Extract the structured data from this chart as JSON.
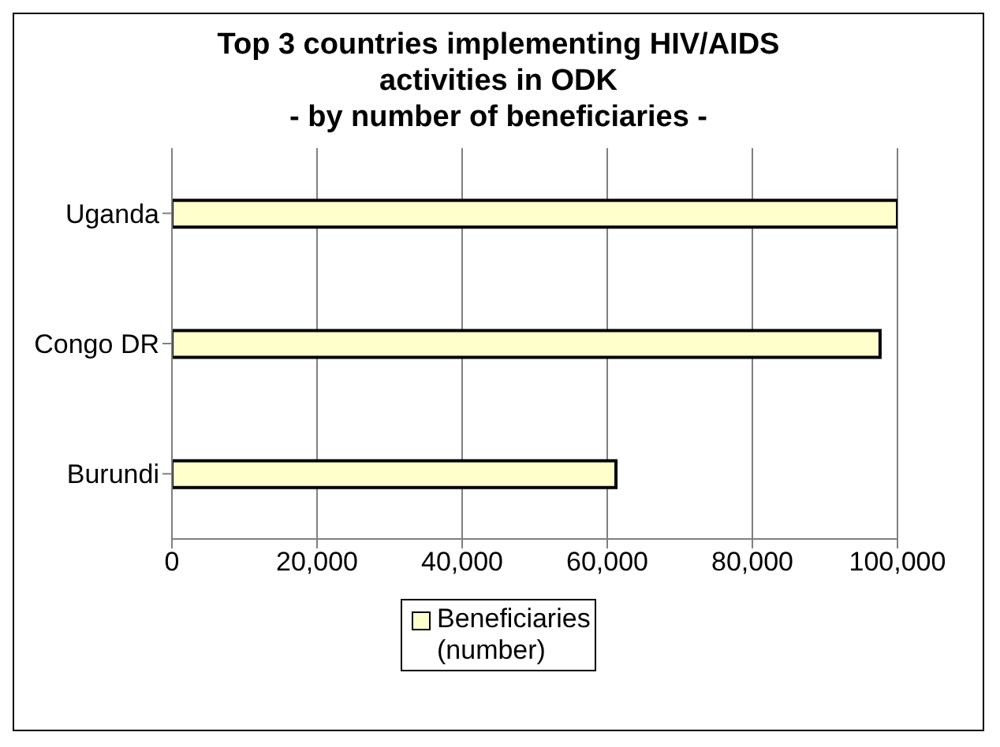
{
  "chart_data": {
    "type": "bar",
    "orientation": "horizontal",
    "title": "Top 3 countries implementing HIV/AIDS activities in ODK\n- by number of beneficiaries -",
    "categories": [
      "Uganda",
      "Congo DR",
      "Burundi"
    ],
    "series": [
      {
        "name": "Beneficiaries (number)",
        "color": "#ffffcc",
        "values": [
          100000,
          97600,
          61200
        ]
      }
    ],
    "xlim": [
      0,
      100000
    ],
    "xticks": [
      0,
      {
        "value": 20000,
        "label": "20,000"
      },
      {
        "value": 40000,
        "label": "40,000"
      },
      {
        "value": 60000,
        "label": "60,000"
      },
      {
        "value": 80000,
        "label": "80,000"
      },
      {
        "value": 100000,
        "label": "100,000"
      }
    ],
    "grid": "x",
    "legend": "bottom"
  }
}
